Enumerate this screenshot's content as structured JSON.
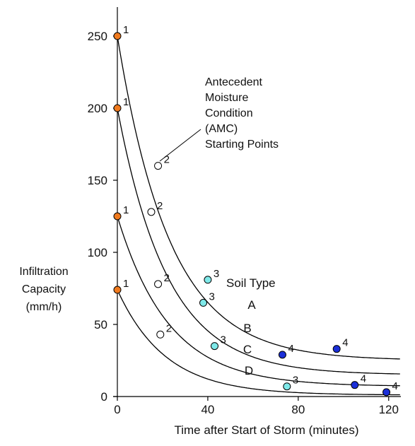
{
  "chart_data": {
    "type": "line",
    "xlabel": "Time after Start of Storm (minutes)",
    "ylabel_lines": [
      "Infiltration",
      "Capacity",
      "(mm/h)"
    ],
    "xlim": [
      0,
      130
    ],
    "ylim": [
      0,
      260
    ],
    "xticks": [
      0,
      40,
      80,
      120
    ],
    "yticks": [
      0,
      50,
      100,
      150,
      200,
      250
    ],
    "legend_title": "Soil Type",
    "annotation_lines": [
      "Antecedent",
      "Moisture",
      "Condition",
      "(AMC)",
      "Starting Points"
    ],
    "colors": {
      "point_1": "#f07a1e",
      "point_2": "#ffffff",
      "point_3": "#7fe9e9",
      "point_4": "#1b2fd8",
      "curve": "#000000"
    },
    "series": [
      {
        "name": "A",
        "f0": 250,
        "fc": 25,
        "k": 0.043,
        "points": [
          {
            "id": "1",
            "x": 0,
            "y": 250
          },
          {
            "id": "2",
            "x": 18,
            "y": 160
          },
          {
            "id": "3",
            "x": 40,
            "y": 81
          },
          {
            "id": "4",
            "x": 97,
            "y": 33
          }
        ]
      },
      {
        "name": "B",
        "f0": 200,
        "fc": 15,
        "k": 0.045,
        "points": [
          {
            "id": "1",
            "x": 0,
            "y": 200
          },
          {
            "id": "2",
            "x": 15,
            "y": 128
          },
          {
            "id": "3",
            "x": 38,
            "y": 65
          },
          {
            "id": "4",
            "x": 73,
            "y": 29
          }
        ]
      },
      {
        "name": "C",
        "f0": 125,
        "fc": 7,
        "k": 0.044,
        "points": [
          {
            "id": "1",
            "x": 0,
            "y": 125
          },
          {
            "id": "2",
            "x": 18,
            "y": 78
          },
          {
            "id": "3",
            "x": 43,
            "y": 35
          },
          {
            "id": "4",
            "x": 105,
            "y": 8
          }
        ]
      },
      {
        "name": "D",
        "f0": 74,
        "fc": 1,
        "k": 0.047,
        "points": [
          {
            "id": "1",
            "x": 0,
            "y": 74
          },
          {
            "id": "2",
            "x": 19,
            "y": 43
          },
          {
            "id": "3",
            "x": 75,
            "y": 7
          },
          {
            "id": "4",
            "x": 119,
            "y": 3
          }
        ]
      }
    ]
  }
}
